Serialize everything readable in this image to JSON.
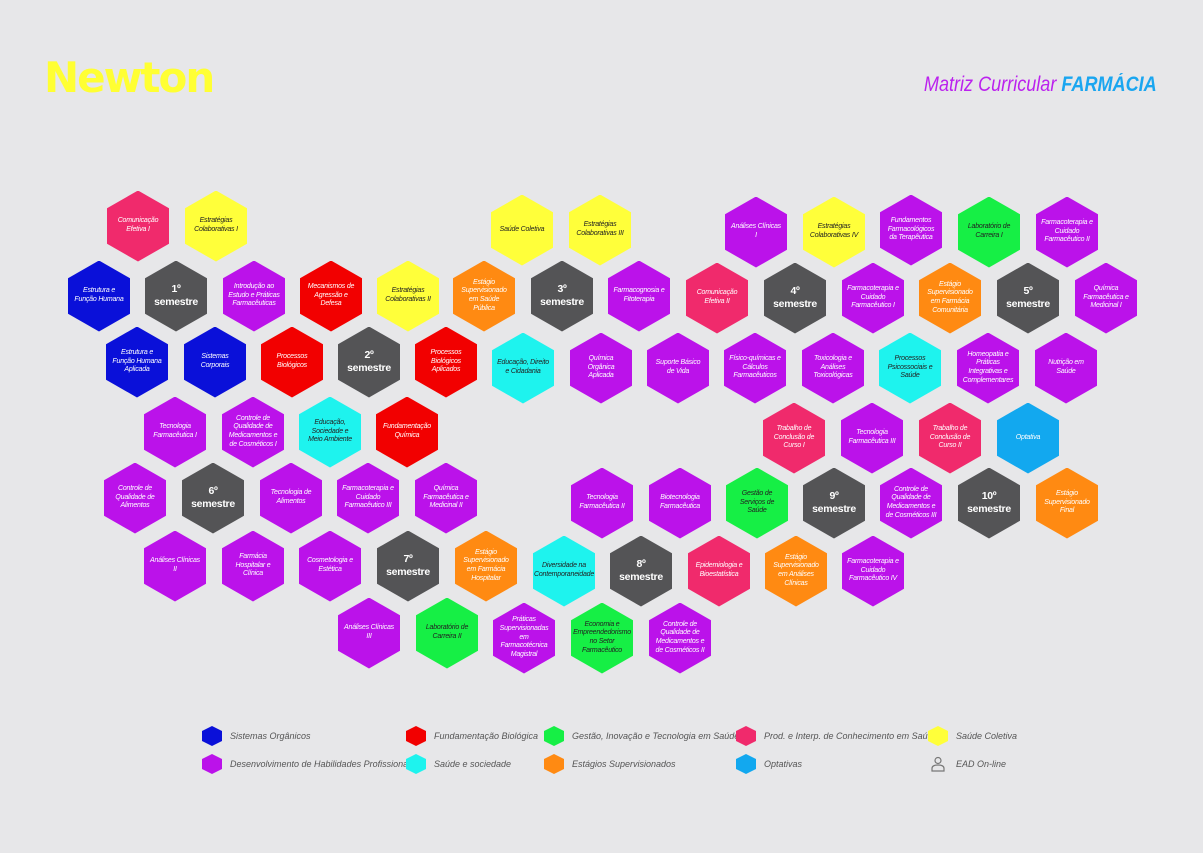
{
  "header": {
    "logo": "Newton",
    "title_prefix": "Matriz Curricular ",
    "title_emphasis": "FARMÁCIA"
  },
  "colors": {
    "blue": "#0a10d9",
    "gray": "#545456",
    "purple": "#bb12ea",
    "red": "#f20000",
    "pink": "#f02a6c",
    "yellow": "#ffff3a",
    "orange": "#ff8a12",
    "cyan": "#1ef3ee",
    "green": "#16ef45",
    "lightblue": "#12a8ef"
  },
  "hexes": [
    {
      "label": "Comunicação Efetiva I",
      "color": "pink"
    },
    {
      "label": "Estratégias Colaborativas I",
      "color": "yellow"
    },
    {
      "label": "Estrutura e Função Humana",
      "color": "blue"
    },
    {
      "label": "1º semestre",
      "color": "gray",
      "semester": true
    },
    {
      "label": "Introdução ao Estudo e Práticas Farmacêuticas",
      "color": "purple"
    },
    {
      "label": "Mecanismos de Agressão e Defesa",
      "color": "red"
    },
    {
      "label": "Estratégias Colaborativas II",
      "color": "yellow"
    },
    {
      "label": "Estrutura e Função Humana Aplicada",
      "color": "blue"
    },
    {
      "label": "Sistemas Corporais",
      "color": "blue"
    },
    {
      "label": "Processos Biológicos",
      "color": "red"
    },
    {
      "label": "2º semestre",
      "color": "gray",
      "semester": true
    },
    {
      "label": "Processos Biológicos Aplicados",
      "color": "red"
    },
    {
      "label": "Tecnologia Farmacêutica I",
      "color": "purple"
    },
    {
      "label": "Controle de Qualidade de Medicamentos e de Cosméticos I",
      "color": "purple"
    },
    {
      "label": "Educação, Sociedade e Meio Ambiente",
      "color": "cyan"
    },
    {
      "label": "Fundamentação Química",
      "color": "red"
    },
    {
      "label": "Saúde Coletiva",
      "color": "yellow"
    },
    {
      "label": "Estratégias Colaborativas III",
      "color": "yellow"
    },
    {
      "label": "Estágio Supervisionado em Saúde Pública",
      "color": "orange"
    },
    {
      "label": "3º semestre",
      "color": "gray",
      "semester": true
    },
    {
      "label": "Farmacognosia e Fitoterapia",
      "color": "purple"
    },
    {
      "label": "Educação, Direito e Cidadania",
      "color": "cyan"
    },
    {
      "label": "Química Orgânica Aplicada",
      "color": "purple"
    },
    {
      "label": "Suporte Básico de Vida",
      "color": "purple"
    },
    {
      "label": "Análises Clínicas I",
      "color": "purple"
    },
    {
      "label": "Estratégias Colaborativas IV",
      "color": "yellow"
    },
    {
      "label": "Fundamentos Farmacológicos da Terapêutica",
      "color": "purple"
    },
    {
      "label": "Laboratório de Carreira I",
      "color": "green"
    },
    {
      "label": "Farmacoterapia e Cuidado Farmacêutico II",
      "color": "purple"
    },
    {
      "label": "Comunicação Efetiva II",
      "color": "pink"
    },
    {
      "label": "4º semestre",
      "color": "gray",
      "semester": true
    },
    {
      "label": "Farmacoterapia e Cuidado Farmacêutico I",
      "color": "purple"
    },
    {
      "label": "Estágio Supervisionado em Farmácia Comunitária",
      "color": "orange"
    },
    {
      "label": "5º semestre",
      "color": "gray",
      "semester": true
    },
    {
      "label": "Química Farmacêutica e Medicinal I",
      "color": "purple"
    },
    {
      "label": "Físico-químicas e Cálculos Farmacêuticos",
      "color": "purple"
    },
    {
      "label": "Toxicologia e Análises Toxicológicas",
      "color": "purple"
    },
    {
      "label": "Processos Psicossociais e Saúde",
      "color": "cyan"
    },
    {
      "label": "Homeopatia e Práticas Integrativas e Complementares",
      "color": "purple"
    },
    {
      "label": "Nutrição em Saúde",
      "color": "purple"
    },
    {
      "label": "Trabalho de Conclusão de Curso I",
      "color": "pink"
    },
    {
      "label": "Tecnologia Farmacêutica III",
      "color": "purple"
    },
    {
      "label": "Trabalho de Conclusão de Curso II",
      "color": "pink"
    },
    {
      "label": "Optativa",
      "color": "lightblue"
    },
    {
      "label": "Controle de Qualidade de Alimentos",
      "color": "purple"
    },
    {
      "label": "6º semestre",
      "color": "gray",
      "semester": true
    },
    {
      "label": "Tecnologia de Alimentos",
      "color": "purple"
    },
    {
      "label": "Farmacoterapia e Cuidado Farmacêutico III",
      "color": "purple"
    },
    {
      "label": "Química Farmacêutica e Medicinal II",
      "color": "purple"
    },
    {
      "label": "Tecnologia Farmacêutica II",
      "color": "purple"
    },
    {
      "label": "Biotecnologia Farmacêutica",
      "color": "purple"
    },
    {
      "label": "Gestão de Serviços de Saúde",
      "color": "green"
    },
    {
      "label": "9º semestre",
      "color": "gray",
      "semester": true
    },
    {
      "label": "Controle de Qualidade de Medicamentos e de Cosméticos III",
      "color": "purple"
    },
    {
      "label": "10º semestre",
      "color": "gray",
      "semester": true
    },
    {
      "label": "Estágio Supervisionado Final",
      "color": "orange"
    },
    {
      "label": "Análises Clínicas II",
      "color": "purple"
    },
    {
      "label": "Farmácia Hospitalar e Clínica",
      "color": "purple"
    },
    {
      "label": "Cosmetologia e Estética",
      "color": "purple"
    },
    {
      "label": "7º semestre",
      "color": "gray",
      "semester": true
    },
    {
      "label": "Estágio Supervisionado em Farmácia Hospitalar",
      "color": "orange"
    },
    {
      "label": "Diversidade na Contemporaneidade",
      "color": "cyan"
    },
    {
      "label": "8º semestre",
      "color": "gray",
      "semester": true
    },
    {
      "label": "Epidemiologia e Bioestatística",
      "color": "pink"
    },
    {
      "label": "Estágio Supervisionado em Análises Clínicas",
      "color": "orange"
    },
    {
      "label": "Farmacoterapia e Cuidado Farmacêutico IV",
      "color": "purple"
    },
    {
      "label": "Análises Clínicas III",
      "color": "purple"
    },
    {
      "label": "Laboratório de Carreira II",
      "color": "green"
    },
    {
      "label": "Práticas Supervisionadas em Farmacotécnica Magistral",
      "color": "purple"
    },
    {
      "label": "Economia e Empreendedorismo no Setor Farmacêutico",
      "color": "green"
    },
    {
      "label": "Controle de Qualidade de Medicamentos e de Cosméticos II",
      "color": "purple"
    }
  ],
  "legend": [
    {
      "label": "Sistemas Orgânicos",
      "color": "blue"
    },
    {
      "label": "Desenvolvimento de Habilidades Profissionais",
      "color": "purple"
    },
    {
      "label": "Fundamentação Biológica",
      "color": "red"
    },
    {
      "label": "Saúde e sociedade",
      "color": "cyan"
    },
    {
      "label": "Gestão, Inovação e Tecnologia em Saúde",
      "color": "green"
    },
    {
      "label": "Estágios Supervisionados",
      "color": "orange"
    },
    {
      "label": "Prod. e Interp. de Conhecimento em Saúde",
      "color": "pink"
    },
    {
      "label": "Optativas",
      "color": "lightblue"
    },
    {
      "label": "Saúde Coletiva",
      "color": "yellow"
    },
    {
      "label": "EAD On-line",
      "icon": "person-icon"
    }
  ]
}
